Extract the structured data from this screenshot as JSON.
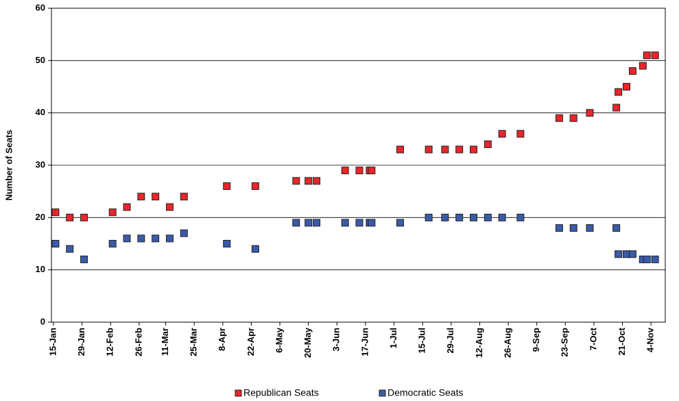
{
  "chart_data": {
    "type": "scatter",
    "y_label": "Number of Seats",
    "x": [
      "16-Jan",
      "23-Jan",
      "30-Jan",
      "13-Feb",
      "20-Feb",
      "27-Feb",
      "6-Mar",
      "13-Mar",
      "20-Mar",
      "10-Apr",
      "24-Apr",
      "14-May",
      "20-May",
      "24-May",
      "7-Jun",
      "14-Jun",
      "19-Jun",
      "20-Jun",
      "4-Jul",
      "18-Jul",
      "26-Jul",
      "2-Aug",
      "9-Aug",
      "16-Aug",
      "23-Aug",
      "1-Sep",
      "20-Sep",
      "27-Sep",
      "5-Oct",
      "18-Oct",
      "19-Oct",
      "23-Oct",
      "26-Oct",
      "31-Oct",
      "2-Nov",
      "6-Nov"
    ],
    "series": [
      {
        "name": "Republican Seats",
        "color": "#e8262b",
        "values": [
          21,
          20,
          20,
          21,
          22,
          24,
          24,
          22,
          24,
          26,
          26,
          27,
          27,
          27,
          29,
          29,
          29,
          29,
          33,
          33,
          33,
          33,
          33,
          34,
          36,
          36,
          39,
          39,
          40,
          41,
          44,
          45,
          48,
          49,
          51,
          51
        ]
      },
      {
        "name": "Democratic Seats",
        "color": "#3a5ba8",
        "values": [
          15,
          14,
          12,
          15,
          16,
          16,
          16,
          16,
          17,
          15,
          14,
          19,
          19,
          19,
          19,
          19,
          19,
          19,
          19,
          20,
          20,
          20,
          20,
          20,
          20,
          20,
          18,
          18,
          18,
          18,
          13,
          13,
          13,
          12,
          12,
          12
        ]
      }
    ],
    "xlim": [
      "14-Jan",
      "11-Nov"
    ],
    "xticks": [
      "15-Jan",
      "29-Jan",
      "12-Feb",
      "26-Feb",
      "11-Mar",
      "25-Mar",
      "8-Apr",
      "22-Apr",
      "6-May",
      "20-May",
      "3-Jun",
      "17-Jun",
      "1-Jul",
      "15-Jul",
      "29-Jul",
      "12-Aug",
      "26-Aug",
      "9-Sep",
      "23-Sep",
      "7-Oct",
      "21-Oct",
      "4-Nov"
    ],
    "ylim": [
      0,
      60
    ],
    "yticks": [
      0,
      10,
      20,
      30,
      40,
      50,
      60
    ],
    "grid": true,
    "legend": "bottom"
  }
}
